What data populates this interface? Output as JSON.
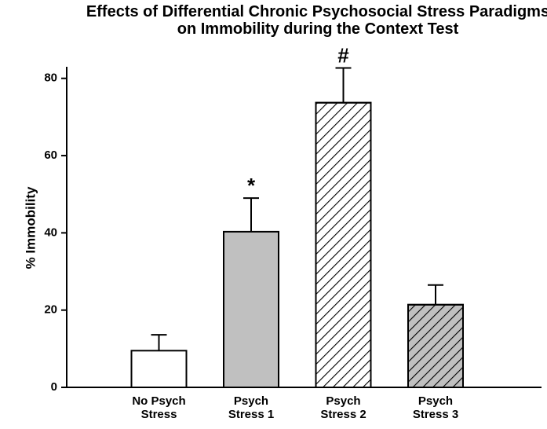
{
  "chart_data": {
    "type": "bar",
    "title": "Effects of Differential Chronic Psychosocial Stress Paradigms on Immobility during the Context Test",
    "ylabel": "% Immobility",
    "categories": [
      "No Psych Stress",
      "Psych Stress 1",
      "Psych Stress 2",
      "Psych Stress 3"
    ],
    "values": [
      9.5,
      40.3,
      73.7,
      21.4
    ],
    "errors": [
      4.1,
      8.7,
      9.0,
      5.1
    ],
    "annotations": [
      null,
      "*",
      "#",
      null
    ],
    "colors": [
      "#ffffff",
      "#c0c0c0",
      "#ffffff",
      "#c0c0c0"
    ],
    "hatch": [
      false,
      false,
      true,
      true
    ],
    "ylim": [
      0,
      83
    ],
    "yticks": [
      0,
      20,
      40,
      60,
      80
    ],
    "grid": false
  }
}
